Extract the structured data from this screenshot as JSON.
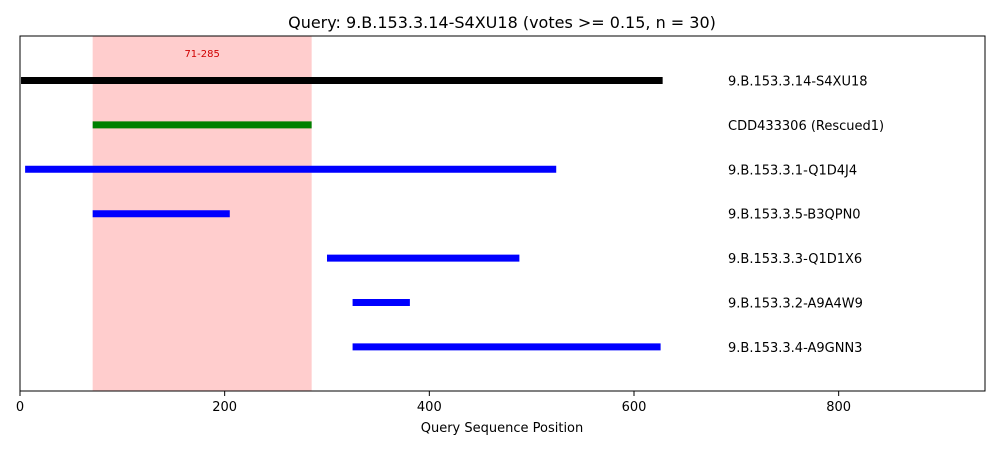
{
  "chart_data": {
    "type": "range-bar",
    "title": "Query: 9.B.153.3.14-S4XU18 (votes >= 0.15, n = 30)",
    "xlabel": "Query Sequence Position",
    "ylabel": "",
    "xlim": [
      0,
      943
    ],
    "xticks": [
      0,
      200,
      400,
      600,
      800
    ],
    "grid": false,
    "highlight_region": {
      "start": 71,
      "end": 285,
      "label": "71-285",
      "color": "#ff9b9b",
      "label_color": "#d00000"
    },
    "series": [
      {
        "name": "9.B.153.3.14-S4XU18",
        "start": 1,
        "end": 628,
        "color": "#000000"
      },
      {
        "name": "CDD433306 (Rescued1)",
        "start": 71,
        "end": 285,
        "color": "#008000"
      },
      {
        "name": "9.B.153.3.1-Q1D4J4",
        "start": 5,
        "end": 524,
        "color": "#0000ff"
      },
      {
        "name": "9.B.153.3.5-B3QPN0",
        "start": 71,
        "end": 205,
        "color": "#0000ff"
      },
      {
        "name": "9.B.153.3.3-Q1D1X6",
        "start": 300,
        "end": 488,
        "color": "#0000ff"
      },
      {
        "name": "9.B.153.3.2-A9A4W9",
        "start": 325,
        "end": 381,
        "color": "#0000ff"
      },
      {
        "name": "9.B.153.3.4-A9GNN3",
        "start": 325,
        "end": 626,
        "color": "#0000ff"
      }
    ]
  }
}
